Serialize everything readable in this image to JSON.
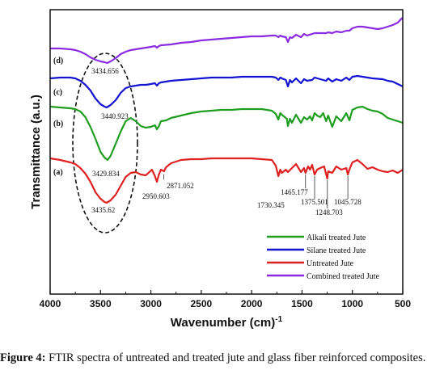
{
  "chart_data": {
    "type": "line",
    "xlabel": "Wavenumber (cm)",
    "xlabel_superscript": "-1",
    "ylabel": "Transmittance (a.u.)",
    "xlim": [
      4000,
      500
    ],
    "x_ticks": [
      "4000",
      "3500",
      "3000",
      "2500",
      "2000",
      "1500",
      "1000",
      "500"
    ],
    "grid": false,
    "legend_position": "bottom-right",
    "series": [
      {
        "name": "Alkali treated Jute",
        "color": "#1e9e1e",
        "tag": "(b)",
        "points": [
          [
            4000,
            132
          ],
          [
            3900,
            133
          ],
          [
            3800,
            134
          ],
          [
            3750,
            135
          ],
          [
            3700,
            138
          ],
          [
            3650,
            145
          ],
          [
            3600,
            157
          ],
          [
            3550,
            172
          ],
          [
            3500,
            188
          ],
          [
            3460,
            195
          ],
          [
            3430,
            198
          ],
          [
            3400,
            193
          ],
          [
            3350,
            178
          ],
          [
            3300,
            163
          ],
          [
            3250,
            150
          ],
          [
            3200,
            146
          ],
          [
            3150,
            150
          ],
          [
            3100,
            156
          ],
          [
            3050,
            158
          ],
          [
            3000,
            157
          ],
          [
            2960,
            155
          ],
          [
            2940,
            160
          ],
          [
            2920,
            156
          ],
          [
            2900,
            150
          ],
          [
            2850,
            149
          ],
          [
            2800,
            146
          ],
          [
            2700,
            143
          ],
          [
            2600,
            140
          ],
          [
            2500,
            138
          ],
          [
            2400,
            137
          ],
          [
            2300,
            136
          ],
          [
            2200,
            136
          ],
          [
            2100,
            135
          ],
          [
            2000,
            135
          ],
          [
            1900,
            135
          ],
          [
            1800,
            137
          ],
          [
            1760,
            141
          ],
          [
            1735,
            148
          ],
          [
            1715,
            140
          ],
          [
            1700,
            142
          ],
          [
            1650,
            147
          ],
          [
            1640,
            156
          ],
          [
            1620,
            147
          ],
          [
            1600,
            152
          ],
          [
            1560,
            142
          ],
          [
            1510,
            152
          ],
          [
            1480,
            145
          ],
          [
            1450,
            148
          ],
          [
            1420,
            144
          ],
          [
            1400,
            149
          ],
          [
            1375,
            140
          ],
          [
            1350,
            143
          ],
          [
            1320,
            145
          ],
          [
            1290,
            140
          ],
          [
            1260,
            150
          ],
          [
            1240,
            143
          ],
          [
            1200,
            157
          ],
          [
            1160,
            144
          ],
          [
            1110,
            150
          ],
          [
            1060,
            140
          ],
          [
            1030,
            149
          ],
          [
            1000,
            136
          ],
          [
            950,
            133
          ],
          [
            900,
            132
          ],
          [
            850,
            135
          ],
          [
            800,
            137
          ],
          [
            750,
            138
          ],
          [
            700,
            141
          ],
          [
            650,
            146
          ],
          [
            600,
            148
          ],
          [
            550,
            150
          ],
          [
            500,
            152
          ]
        ],
        "peaks": [
          {
            "label": "3429.834",
            "x": 3440
          }
        ]
      },
      {
        "name": "Silane treated Jute",
        "color": "#1414d2",
        "tag": "(c)",
        "points": [
          [
            4000,
            97
          ],
          [
            3900,
            96
          ],
          [
            3800,
            96
          ],
          [
            3750,
            97
          ],
          [
            3700,
            100
          ],
          [
            3650,
            105
          ],
          [
            3600,
            112
          ],
          [
            3550,
            122
          ],
          [
            3500,
            129
          ],
          [
            3460,
            132
          ],
          [
            3440,
            133
          ],
          [
            3400,
            130
          ],
          [
            3350,
            124
          ],
          [
            3300,
            115
          ],
          [
            3250,
            109
          ],
          [
            3200,
            107
          ],
          [
            3150,
            106
          ],
          [
            3100,
            105
          ],
          [
            3050,
            105
          ],
          [
            3000,
            104
          ],
          [
            2960,
            103
          ],
          [
            2940,
            106
          ],
          [
            2920,
            103
          ],
          [
            2900,
            102
          ],
          [
            2800,
            100
          ],
          [
            2700,
            99
          ],
          [
            2600,
            98
          ],
          [
            2500,
            97
          ],
          [
            2400,
            96
          ],
          [
            2300,
            96
          ],
          [
            2200,
            96
          ],
          [
            2100,
            95
          ],
          [
            2000,
            95
          ],
          [
            1900,
            95
          ],
          [
            1800,
            95
          ],
          [
            1760,
            96
          ],
          [
            1735,
            99
          ],
          [
            1715,
            96
          ],
          [
            1700,
            97
          ],
          [
            1660,
            99
          ],
          [
            1640,
            107
          ],
          [
            1620,
            99
          ],
          [
            1600,
            102
          ],
          [
            1560,
            97
          ],
          [
            1510,
            103
          ],
          [
            1480,
            98
          ],
          [
            1450,
            100
          ],
          [
            1400,
            99
          ],
          [
            1375,
            96
          ],
          [
            1320,
            98
          ],
          [
            1260,
            100
          ],
          [
            1240,
            97
          ],
          [
            1200,
            101
          ],
          [
            1160,
            98
          ],
          [
            1110,
            100
          ],
          [
            1060,
            96
          ],
          [
            1030,
            99
          ],
          [
            1000,
            95
          ],
          [
            950,
            94
          ],
          [
            900,
            95
          ],
          [
            850,
            96
          ],
          [
            800,
            97
          ],
          [
            700,
            98
          ],
          [
            650,
            100
          ],
          [
            600,
            101
          ],
          [
            550,
            104
          ],
          [
            500,
            107
          ]
        ]
      },
      {
        "name": "Untreated Jute",
        "color": "#e02020",
        "tag": "(a)",
        "points": [
          [
            4000,
            196
          ],
          [
            3900,
            198
          ],
          [
            3800,
            201
          ],
          [
            3750,
            203
          ],
          [
            3700,
            208
          ],
          [
            3650,
            215
          ],
          [
            3600,
            225
          ],
          [
            3550,
            238
          ],
          [
            3500,
            246
          ],
          [
            3460,
            250
          ],
          [
            3440,
            251
          ],
          [
            3400,
            248
          ],
          [
            3350,
            241
          ],
          [
            3300,
            230
          ],
          [
            3250,
            219
          ],
          [
            3200,
            214
          ],
          [
            3150,
            213
          ],
          [
            3100,
            216
          ],
          [
            3050,
            217
          ],
          [
            2990,
            210
          ],
          [
            2960,
            218
          ],
          [
            2940,
            225
          ],
          [
            2920,
            216
          ],
          [
            2900,
            210
          ],
          [
            2870,
            212
          ],
          [
            2850,
            207
          ],
          [
            2800,
            202
          ],
          [
            2700,
            198
          ],
          [
            2600,
            197
          ],
          [
            2500,
            197
          ],
          [
            2400,
            196
          ],
          [
            2300,
            196
          ],
          [
            2200,
            196
          ],
          [
            2100,
            196
          ],
          [
            2000,
            196
          ],
          [
            1900,
            197
          ],
          [
            1800,
            198
          ],
          [
            1760,
            205
          ],
          [
            1735,
            218
          ],
          [
            1715,
            210
          ],
          [
            1700,
            214
          ],
          [
            1660,
            210
          ],
          [
            1640,
            213
          ],
          [
            1600,
            208
          ],
          [
            1560,
            203
          ],
          [
            1510,
            213
          ],
          [
            1480,
            208
          ],
          [
            1465,
            214
          ],
          [
            1440,
            206
          ],
          [
            1420,
            210
          ],
          [
            1400,
            204
          ],
          [
            1375,
            216
          ],
          [
            1350,
            210
          ],
          [
            1320,
            208
          ],
          [
            1280,
            206
          ],
          [
            1250,
            221
          ],
          [
            1240,
            212
          ],
          [
            1200,
            214
          ],
          [
            1160,
            206
          ],
          [
            1110,
            210
          ],
          [
            1060,
            208
          ],
          [
            1045,
            216
          ],
          [
            1030,
            210
          ],
          [
            1000,
            201
          ],
          [
            950,
            198
          ],
          [
            900,
            203
          ],
          [
            850,
            209
          ],
          [
            800,
            207
          ],
          [
            750,
            210
          ],
          [
            700,
            212
          ],
          [
            650,
            213
          ],
          [
            600,
            211
          ],
          [
            550,
            214
          ],
          [
            500,
            210
          ]
        ],
        "peaks": [
          {
            "label": "3435.62",
            "x": 3440
          },
          {
            "label": "2950.603",
            "x": 2965
          },
          {
            "label": "2871.052",
            "x": 2871
          },
          {
            "label": "1730.345",
            "x": 1730
          },
          {
            "label": "1465.177",
            "x": 1465
          },
          {
            "label": "1375.501",
            "x": 1375
          },
          {
            "label": "1248.703",
            "x": 1248
          },
          {
            "label": "1045.728",
            "x": 1045
          }
        ]
      },
      {
        "name": "Combined treated Jute",
        "color": "#8a2be2",
        "tag": "(d)",
        "points": [
          [
            4000,
            60
          ],
          [
            3900,
            60
          ],
          [
            3800,
            61
          ],
          [
            3750,
            62
          ],
          [
            3700,
            64
          ],
          [
            3650,
            67
          ],
          [
            3600,
            71
          ],
          [
            3550,
            74
          ],
          [
            3500,
            76
          ],
          [
            3460,
            77
          ],
          [
            3434,
            78
          ],
          [
            3400,
            76
          ],
          [
            3350,
            72
          ],
          [
            3300,
            67
          ],
          [
            3250,
            64
          ],
          [
            3200,
            62
          ],
          [
            3100,
            60
          ],
          [
            3000,
            58
          ],
          [
            2960,
            57
          ],
          [
            2940,
            59
          ],
          [
            2920,
            57
          ],
          [
            2900,
            56
          ],
          [
            2800,
            55
          ],
          [
            2700,
            53
          ],
          [
            2600,
            52
          ],
          [
            2500,
            50
          ],
          [
            2400,
            49
          ],
          [
            2300,
            48
          ],
          [
            2200,
            47
          ],
          [
            2100,
            46
          ],
          [
            2000,
            45
          ],
          [
            1900,
            45
          ],
          [
            1800,
            44
          ],
          [
            1760,
            44
          ],
          [
            1735,
            46
          ],
          [
            1715,
            44
          ],
          [
            1700,
            45
          ],
          [
            1660,
            46
          ],
          [
            1640,
            52
          ],
          [
            1620,
            46
          ],
          [
            1600,
            47
          ],
          [
            1560,
            43
          ],
          [
            1510,
            46
          ],
          [
            1480,
            42
          ],
          [
            1450,
            44
          ],
          [
            1400,
            42
          ],
          [
            1375,
            41
          ],
          [
            1320,
            41
          ],
          [
            1260,
            41
          ],
          [
            1240,
            40
          ],
          [
            1200,
            41
          ],
          [
            1160,
            39
          ],
          [
            1110,
            40
          ],
          [
            1060,
            38
          ],
          [
            1030,
            38
          ],
          [
            1000,
            35
          ],
          [
            950,
            33
          ],
          [
            900,
            33
          ],
          [
            850,
            34
          ],
          [
            800,
            35
          ],
          [
            750,
            36
          ],
          [
            700,
            35
          ],
          [
            650,
            33
          ],
          [
            600,
            31
          ],
          [
            550,
            28
          ],
          [
            520,
            24
          ],
          [
            500,
            22
          ]
        ],
        "peaks": [
          {
            "label": "3434.656",
            "x": 3434
          }
        ]
      }
    ]
  },
  "silane_peak_label": "3440.923",
  "caption": {
    "label": "Figure 4:",
    "text": " FTIR spectra of untreated and treated jute and glass fiber reinforced composites."
  }
}
